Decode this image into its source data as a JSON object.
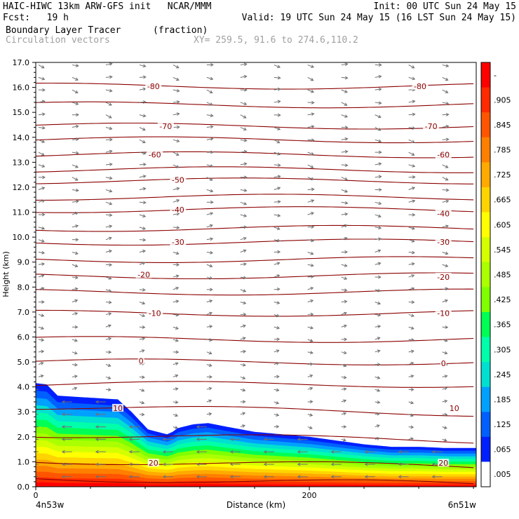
{
  "header": {
    "left_line1": "HAIC-HIWC 13km ARW-GFS init   NCAR/MMM",
    "left_line2": "Fcst:   19 h",
    "right_line1": "Init: 00 UTC Sun 24 May 15",
    "right_line2": "Valid: 19 UTC Sun 24 May 15 (16 LST Sun 24 May 15)",
    "field_name": "Boundary Layer Tracer",
    "field_units": "(fraction)",
    "vectors_label": "Circulation vectors",
    "xy_label": "XY= 259.5, 91.6 to 274.6,110.2"
  },
  "chart_data": {
    "type": "heatmap",
    "title": "Boundary Layer Tracer",
    "xlabel": "Distance (km)",
    "ylabel": "Height (km)",
    "xlim": [
      0,
      322
    ],
    "ylim": [
      0,
      17
    ],
    "x_ticks": [
      0,
      200
    ],
    "x_tick_labels": [
      "0",
      "200"
    ],
    "x_end_labels": [
      "4n53w",
      "6n51w"
    ],
    "y_ticks": [
      0,
      1,
      2,
      3,
      4,
      5,
      6,
      7,
      8,
      9,
      10,
      11,
      12,
      13,
      14,
      15,
      16,
      17
    ],
    "y_tick_labels": [
      "0.0",
      "1.0",
      "2.0",
      "3.0",
      "4.0",
      "5.0",
      "6.0",
      "7.0",
      "8.0",
      "9.0",
      "10.0",
      "11.0",
      "12.0",
      "13.0",
      "14.0",
      "15.0",
      "16.0",
      "17.0"
    ],
    "tracer_top_profile": {
      "x": [
        0,
        8,
        16,
        30,
        60,
        70,
        82,
        96,
        100,
        104,
        115,
        126,
        140,
        160,
        180,
        200,
        220,
        240,
        260,
        280,
        300,
        322
      ],
      "top_km": [
        4.15,
        4.1,
        3.65,
        3.6,
        3.5,
        3.0,
        2.3,
        2.1,
        2.2,
        2.35,
        2.5,
        2.55,
        2.4,
        2.2,
        2.1,
        2.0,
        1.85,
        1.7,
        1.6,
        1.6,
        1.55,
        1.55
      ]
    },
    "temperature_contours_c": [
      -80,
      -70,
      -60,
      -50,
      -40,
      -30,
      -20,
      -10,
      0,
      10,
      20
    ],
    "temperature_contour_labels": [
      {
        "value": "-80",
        "x": 86,
        "y": 16.05
      },
      {
        "value": "-80",
        "x": 281,
        "y": 16.05
      },
      {
        "value": "-70",
        "x": 95,
        "y": 14.45
      },
      {
        "value": "-70",
        "x": 289,
        "y": 14.45
      },
      {
        "value": "-60",
        "x": 87,
        "y": 13.3
      },
      {
        "value": "-60",
        "x": 298,
        "y": 13.3
      },
      {
        "value": "-50",
        "x": 104,
        "y": 12.3
      },
      {
        "value": "-40",
        "x": 104,
        "y": 11.1
      },
      {
        "value": "-40",
        "x": 298,
        "y": 10.95
      },
      {
        "value": "-30",
        "x": 104,
        "y": 9.8
      },
      {
        "value": "-30",
        "x": 298,
        "y": 9.8
      },
      {
        "value": "-20",
        "x": 79,
        "y": 8.5
      },
      {
        "value": "-20",
        "x": 298,
        "y": 8.4
      },
      {
        "value": "-10",
        "x": 87,
        "y": 6.95
      },
      {
        "value": "-10",
        "x": 298,
        "y": 6.95
      },
      {
        "value": "0",
        "x": 77,
        "y": 5.05
      },
      {
        "value": "0",
        "x": 298,
        "y": 4.95
      },
      {
        "value": "10",
        "x": 60,
        "y": 3.15
      },
      {
        "value": "10",
        "x": 306,
        "y": 3.15
      },
      {
        "value": "20",
        "x": 86,
        "y": 0.95
      },
      {
        "value": "20",
        "x": 298,
        "y": 0.95
      }
    ],
    "colorbar": {
      "labels": [
        "-",
        ".905",
        ".845",
        ".785",
        ".725",
        ".665",
        ".605",
        ".545",
        ".485",
        ".425",
        ".365",
        ".305",
        ".245",
        ".185",
        ".125",
        ".065",
        ".005"
      ],
      "colors": [
        "#ff0000",
        "#ff2a00",
        "#ff5500",
        "#ff7f00",
        "#ffaa00",
        "#ffd400",
        "#ffff00",
        "#d4ff00",
        "#aaff00",
        "#7fff00",
        "#00ff55",
        "#00ffaa",
        "#00e0d0",
        "#00a0ff",
        "#0060ff",
        "#0020ff",
        "#ffffff"
      ]
    },
    "colors": {
      "contour": "#8b0000",
      "vector": "#707070",
      "axis": "#000000"
    },
    "grid": false
  }
}
